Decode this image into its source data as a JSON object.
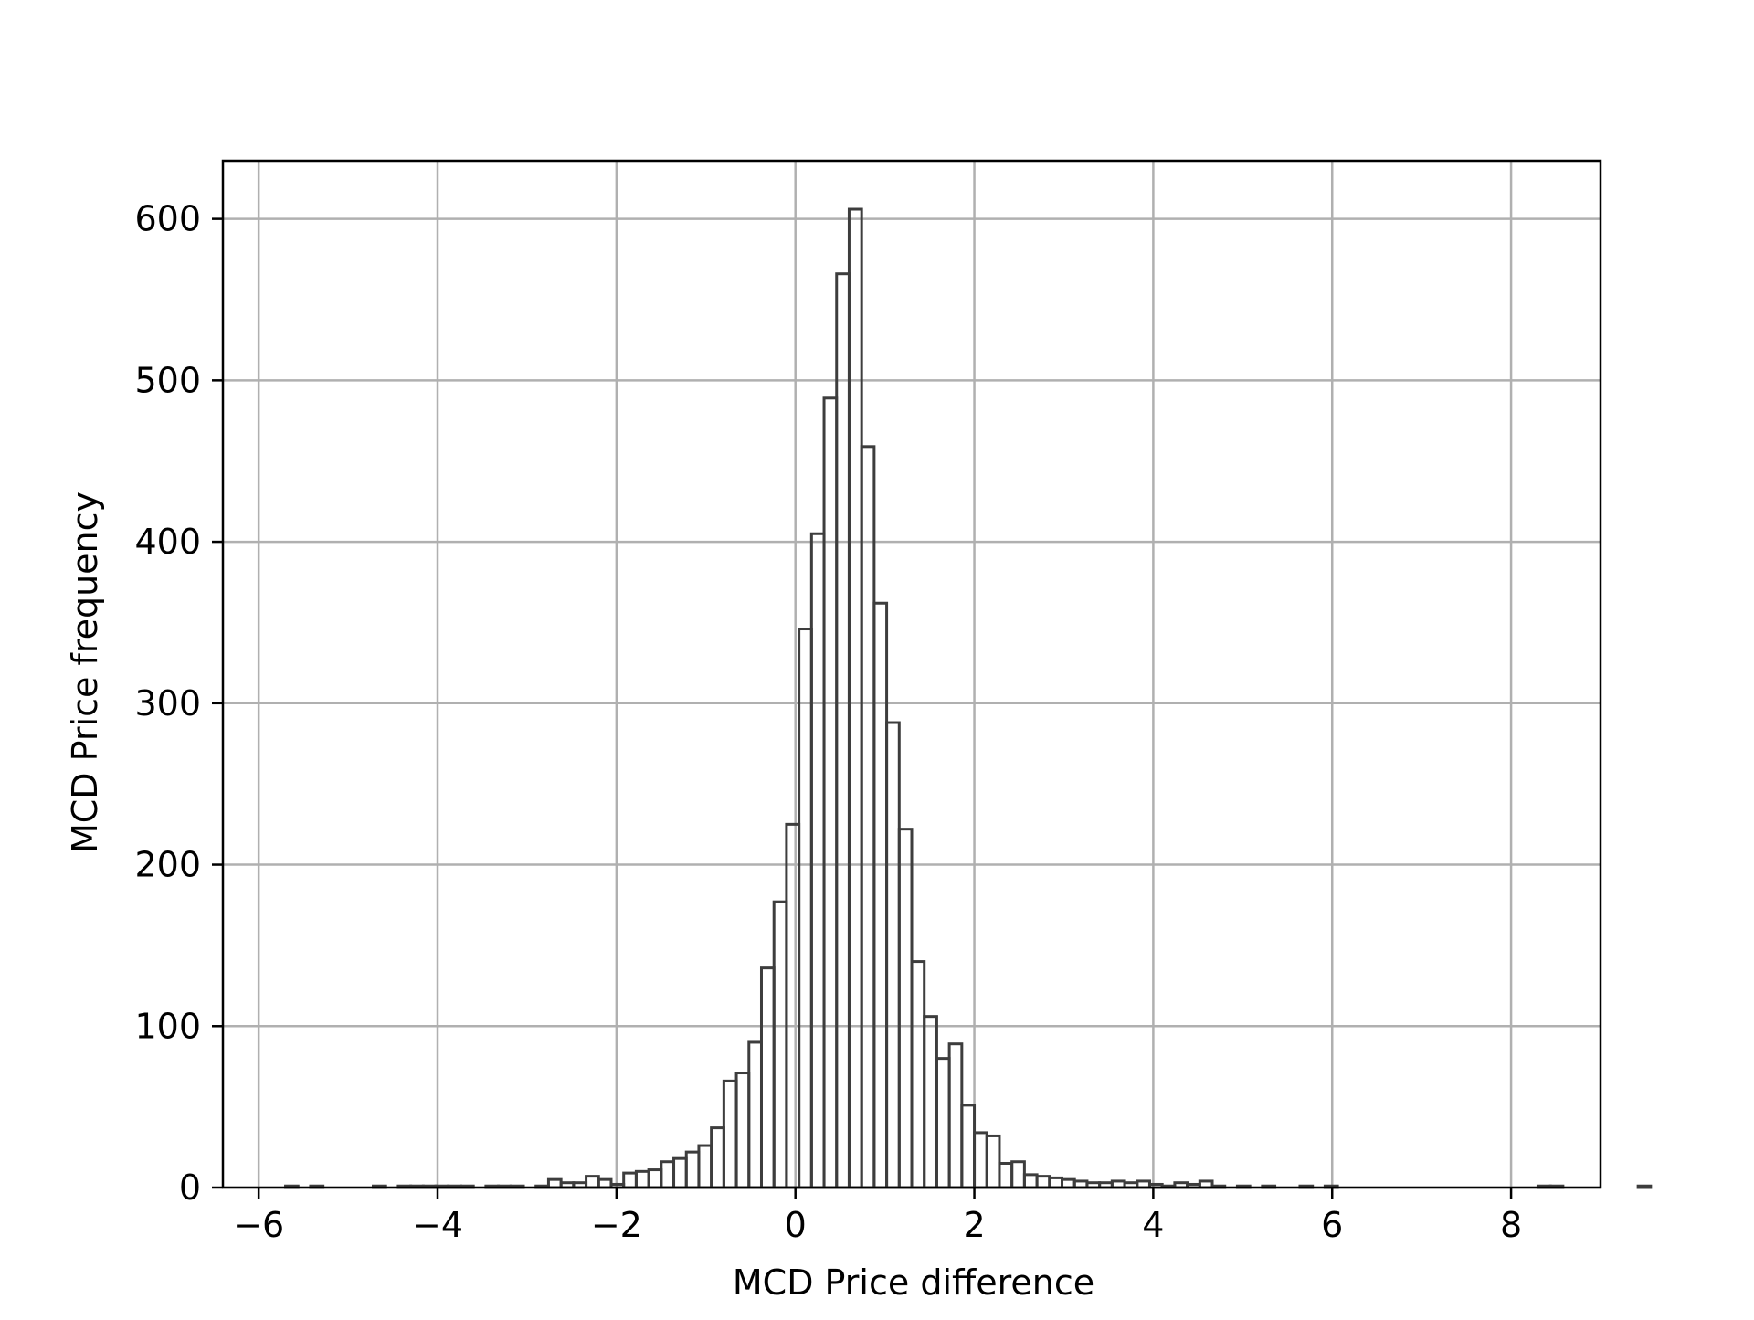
{
  "chart_data": {
    "type": "histogram",
    "title": "",
    "xlabel": "MCD Price difference",
    "ylabel": "MCD Price frequency",
    "xlim": [
      -6.4,
      9.0
    ],
    "ylim": [
      0,
      636
    ],
    "xticks": [
      -6,
      -4,
      -2,
      0,
      2,
      4,
      6,
      8
    ],
    "xtick_labels": [
      "−6",
      "−4",
      "−2",
      "0",
      "2",
      "4",
      "6",
      "8"
    ],
    "yticks": [
      0,
      100,
      200,
      300,
      400,
      500,
      600
    ],
    "ytick_labels": [
      "0",
      "100",
      "200",
      "300",
      "400",
      "500",
      "600"
    ],
    "grid": true,
    "histtype": "step",
    "colors": {
      "line": "#3d3d3d",
      "grid": "#b0b0b0",
      "axes": "#000000"
    },
    "bins": {
      "start": -5.7,
      "width": 0.14,
      "counts": [
        1,
        0,
        1,
        0,
        0,
        0,
        0,
        1,
        0,
        1,
        1,
        1,
        1,
        1,
        1,
        0,
        1,
        1,
        1,
        0,
        1,
        5,
        3,
        3,
        7,
        5,
        2,
        9,
        10,
        11,
        16,
        18,
        22,
        26,
        37,
        66,
        71,
        90,
        136,
        177,
        225,
        346,
        405,
        489,
        566,
        606,
        459,
        362,
        288,
        222,
        140,
        106,
        80,
        89,
        51,
        34,
        32,
        15,
        16,
        8,
        7,
        6,
        5,
        4,
        3,
        3,
        4,
        3,
        4,
        2,
        1,
        3,
        2,
        4,
        1,
        0,
        1,
        0,
        1,
        0,
        0,
        1,
        0,
        1,
        0,
        0,
        0,
        0,
        0,
        0,
        0,
        0,
        0,
        0,
        0,
        0,
        0,
        0,
        0,
        0,
        1,
        1,
        0,
        0,
        0,
        0,
        0,
        0,
        1,
        0
      ]
    }
  }
}
